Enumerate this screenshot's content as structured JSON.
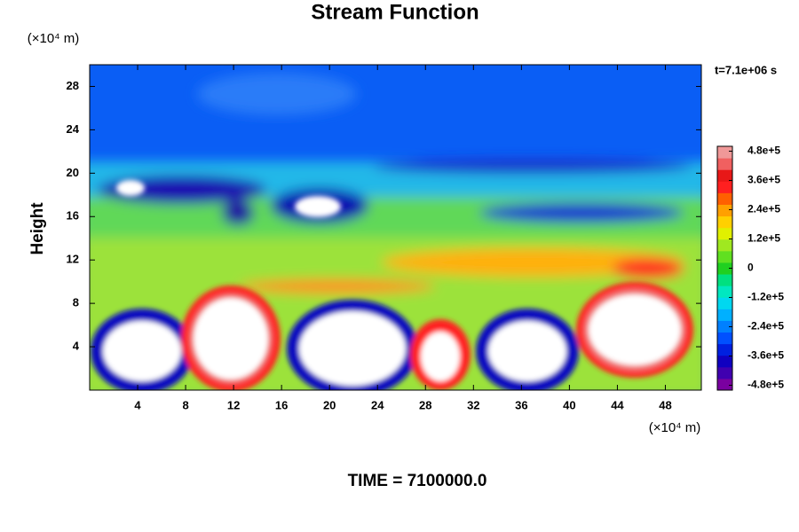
{
  "chart_data": {
    "type": "contour",
    "title": "Stream Function",
    "y_label": "Height",
    "y_unit": "(×10⁴ m)",
    "x_unit": "(×10⁴ m)",
    "time_stamp": "t=7.1e+06 s",
    "footer": "TIME = 7100000.0",
    "xlim": [
      0,
      51
    ],
    "xticks": [
      4,
      8,
      12,
      16,
      20,
      24,
      28,
      32,
      36,
      40,
      44,
      48
    ],
    "ylim": [
      0,
      30
    ],
    "yticks": [
      4,
      8,
      12,
      16,
      20,
      24,
      28
    ],
    "clim": [
      -500000,
      500000
    ],
    "cticks": [
      {
        "value": 480000,
        "label": "4.8e+5"
      },
      {
        "value": 360000,
        "label": "3.6e+5"
      },
      {
        "value": 240000,
        "label": "2.4e+5"
      },
      {
        "value": 120000,
        "label": "1.2e+5"
      },
      0,
      {
        "value": -120000,
        "label": "-1.2e+5"
      },
      {
        "value": -240000,
        "label": "-2.4e+5"
      },
      {
        "value": -360000,
        "label": "-3.6e+5"
      },
      {
        "value": -480000,
        "label": "-4.8e+5"
      }
    ],
    "colormap": [
      "#7a00a0",
      "#4000b0",
      "#1000c0",
      "#0020e0",
      "#0050ff",
      "#0080ff",
      "#00b0ff",
      "#00d8f0",
      "#00e8c0",
      "#00e080",
      "#20d020",
      "#60e020",
      "#a0e820",
      "#e0f000",
      "#ffd000",
      "#ffa000",
      "#ff6000",
      "#ff2020",
      "#e81818",
      "#f06060",
      "#f09898"
    ]
  }
}
